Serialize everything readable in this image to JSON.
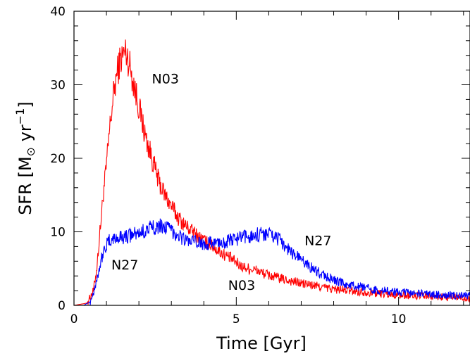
{
  "chart_data": {
    "type": "line",
    "xlabel": "Time [Gyr]",
    "ylabel_main": "SFR [M",
    "ylabel_unit": " yr",
    "ylabel_exp": "−1",
    "ylabel_close": "]",
    "sun_symbol": "⊙",
    "xlim": [
      0,
      12.2
    ],
    "ylim": [
      0,
      40
    ],
    "xticks": [
      0,
      5,
      10
    ],
    "yticks": [
      0,
      10,
      20,
      30,
      40
    ],
    "grid": false,
    "series": [
      {
        "name": "N03",
        "color": "#ff0000",
        "x": [
          0,
          0.4,
          0.6,
          0.7,
          0.8,
          0.9,
          1.0,
          1.1,
          1.2,
          1.3,
          1.4,
          1.5,
          1.6,
          1.7,
          1.8,
          1.9,
          2.0,
          2.1,
          2.2,
          2.3,
          2.4,
          2.5,
          2.6,
          2.8,
          3.0,
          3.2,
          3.4,
          3.6,
          3.8,
          4.0,
          4.2,
          4.4,
          4.6,
          4.8,
          5.0,
          5.2,
          5.4,
          5.6,
          5.8,
          6.0,
          6.3,
          6.6,
          7.0,
          7.5,
          8.0,
          8.5,
          9.0,
          9.5,
          10.0,
          10.5,
          11.0,
          11.5,
          12.0,
          12.2
        ],
        "y": [
          0,
          0.3,
          2,
          5,
          10,
          15,
          19,
          24,
          28,
          31,
          33,
          34,
          34.5,
          33,
          31,
          29,
          27,
          25,
          23,
          21.5,
          20,
          18.5,
          17,
          15,
          13.5,
          12,
          11,
          10.2,
          9.5,
          8.8,
          8.2,
          7.6,
          7,
          6.5,
          5.8,
          5.2,
          5,
          4.8,
          4.4,
          4.1,
          3.7,
          3.4,
          3.0,
          2.6,
          2.2,
          2.0,
          1.8,
          1.6,
          1.4,
          1.3,
          1.2,
          1.1,
          1.05,
          1.0
        ]
      },
      {
        "name": "N27",
        "color": "#0000ff",
        "x": [
          0,
          0.3,
          0.5,
          0.6,
          0.7,
          0.8,
          0.9,
          1.0,
          1.1,
          1.2,
          1.4,
          1.6,
          1.8,
          2.0,
          2.2,
          2.4,
          2.6,
          2.8,
          3.0,
          3.2,
          3.4,
          3.6,
          3.8,
          4.0,
          4.3,
          4.6,
          5.0,
          5.3,
          5.6,
          5.9,
          6.1,
          6.3,
          6.5,
          6.7,
          7.0,
          7.3,
          7.6,
          8.0,
          8.5,
          9.0,
          9.5,
          10.0,
          10.5,
          11.0,
          11.5,
          12.0,
          12.2
        ],
        "y": [
          0,
          0,
          0.5,
          1.8,
          3.5,
          5.5,
          7.2,
          8.2,
          8.8,
          9.0,
          9.2,
          9.4,
          9.6,
          9.8,
          10.2,
          10.6,
          10.8,
          10.7,
          10.2,
          9.6,
          9.0,
          8.7,
          8.5,
          8.4,
          8.5,
          8.6,
          9.0,
          9.3,
          9.6,
          9.8,
          9.6,
          9.0,
          8.2,
          7.2,
          6.2,
          5.2,
          4.3,
          3.4,
          2.7,
          2.3,
          2.0,
          1.8,
          1.6,
          1.5,
          1.4,
          1.3,
          1.3
        ]
      }
    ],
    "annotations": [
      {
        "text": "N03",
        "x": 2.4,
        "y": 30.2
      },
      {
        "text": "N27",
        "x": 7.1,
        "y": 8.2
      },
      {
        "text": "N27",
        "x": 1.15,
        "y": 4.9
      },
      {
        "text": "N03",
        "x": 4.75,
        "y": 2.1
      }
    ]
  }
}
